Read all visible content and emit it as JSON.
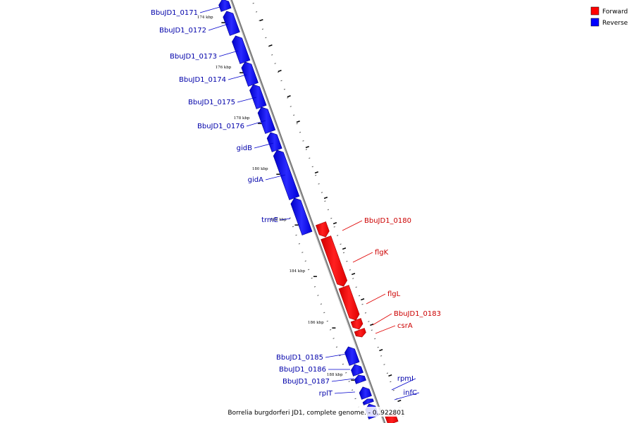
{
  "legend": [
    {
      "name": "Forward",
      "color": "#ff0000"
    },
    {
      "name": "Reverse",
      "color": "#0000ff"
    }
  ],
  "caption": "Borrelia burgdorferi JD1, complete genome. - 0..922801",
  "ticks": [
    "174 kbp",
    "176 kbp",
    "178 kbp",
    "180 kbp",
    "182 kbp",
    "184 kbp",
    "186 kbp",
    "188 kbp"
  ],
  "genes": [
    {
      "name": "BbuJD1_0171",
      "strand": "reverse"
    },
    {
      "name": "BbuJD1_0172",
      "strand": "reverse"
    },
    {
      "name": "BbuJD1_0173",
      "strand": "reverse"
    },
    {
      "name": "BbuJD1_0174",
      "strand": "reverse"
    },
    {
      "name": "BbuJD1_0175",
      "strand": "reverse"
    },
    {
      "name": "BbuJD1_0176",
      "strand": "reverse"
    },
    {
      "name": "gidB",
      "strand": "reverse"
    },
    {
      "name": "gidA",
      "strand": "reverse"
    },
    {
      "name": "trmE",
      "strand": "reverse"
    },
    {
      "name": "BbuJD1_0180",
      "strand": "forward"
    },
    {
      "name": "flgK",
      "strand": "forward"
    },
    {
      "name": "flgL",
      "strand": "forward"
    },
    {
      "name": "BbuJD1_0183",
      "strand": "forward"
    },
    {
      "name": "csrA",
      "strand": "forward"
    },
    {
      "name": "BbuJD1_0185",
      "strand": "reverse"
    },
    {
      "name": "BbuJD1_0186",
      "strand": "reverse"
    },
    {
      "name": "BbuJD1_0187",
      "strand": "reverse"
    },
    {
      "name": "rplT",
      "strand": "reverse"
    },
    {
      "name": "rpmI",
      "strand": "reverse"
    },
    {
      "name": "infC",
      "strand": "reverse"
    }
  ]
}
